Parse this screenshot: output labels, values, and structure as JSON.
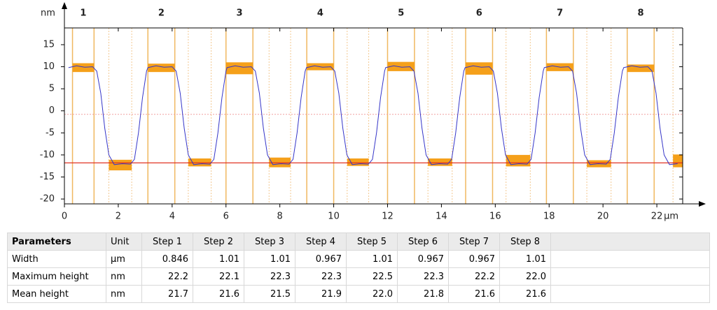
{
  "chart_data": {
    "type": "line",
    "y_unit": "nm",
    "x_unit": "µm",
    "xlim": [
      0,
      22.96
    ],
    "ylim": [
      -21.1,
      18.8
    ],
    "xticks": [
      0,
      2,
      4,
      6,
      8,
      10,
      12,
      14,
      16,
      18,
      20,
      22
    ],
    "yticks": [
      15,
      10,
      5,
      0,
      -5,
      -10,
      -15,
      -20
    ],
    "step_labels": [
      "1",
      "2",
      "3",
      "4",
      "5",
      "6",
      "7",
      "8"
    ],
    "reference_line": -11.8,
    "zero_line": -0.8,
    "series": [
      {
        "color": "#3535c8",
        "x": [
          0.15,
          0.45,
          0.75,
          1.05,
          1.2,
          1.35,
          1.5,
          1.65,
          1.85,
          2.15,
          2.45,
          2.6,
          2.75,
          2.9,
          3.05,
          3.1,
          3.4,
          3.7,
          4.0,
          4.15,
          4.3,
          4.45,
          4.6,
          4.8,
          5.1,
          5.4,
          5.55,
          5.7,
          5.85,
          6.0,
          6.04,
          6.34,
          6.64,
          6.94,
          7.09,
          7.24,
          7.39,
          7.54,
          7.74,
          8.04,
          8.34,
          8.49,
          8.64,
          8.79,
          8.94,
          8.99,
          9.29,
          9.59,
          9.89,
          10.04,
          10.19,
          10.34,
          10.49,
          10.69,
          10.99,
          11.29,
          11.44,
          11.59,
          11.74,
          11.89,
          11.93,
          12.23,
          12.53,
          12.83,
          12.98,
          13.13,
          13.28,
          13.43,
          13.63,
          13.93,
          14.23,
          14.38,
          14.53,
          14.68,
          14.83,
          14.88,
          15.18,
          15.48,
          15.78,
          15.93,
          16.08,
          16.23,
          16.38,
          16.58,
          16.88,
          17.18,
          17.33,
          17.48,
          17.63,
          17.78,
          17.82,
          18.12,
          18.42,
          18.72,
          18.87,
          19.02,
          19.17,
          19.32,
          19.52,
          19.82,
          20.12,
          20.27,
          20.42,
          20.57,
          20.72,
          20.77,
          21.07,
          21.37,
          21.67,
          21.82,
          21.97,
          22.12,
          22.27,
          22.47,
          22.77
        ],
        "values": [
          9.8,
          10.2,
          9.9,
          10.0,
          9.0,
          4,
          -4,
          -10,
          -12.2,
          -12,
          -12.1,
          -11,
          -5,
          3,
          9,
          9.8,
          10.2,
          9.9,
          10.0,
          9.0,
          4,
          -4,
          -10,
          -12.2,
          -12,
          -12.1,
          -11,
          -5,
          3,
          9,
          9.8,
          10.2,
          9.9,
          10.0,
          9.0,
          4,
          -4,
          -10,
          -12.2,
          -12,
          -12.1,
          -11,
          -5,
          3,
          9,
          9.8,
          10.2,
          9.9,
          10.0,
          9.0,
          4,
          -4,
          -10,
          -12.2,
          -12,
          -12.1,
          -11,
          -5,
          3,
          9,
          9.8,
          10.2,
          9.9,
          10.0,
          9.0,
          4,
          -4,
          -10,
          -12.2,
          -12,
          -12.1,
          -11,
          -5,
          3,
          9,
          9.8,
          10.2,
          9.9,
          10.0,
          9.0,
          4,
          -4,
          -10,
          -12.2,
          -12,
          -12.1,
          -11,
          -5,
          3,
          9,
          9.8,
          10.2,
          9.9,
          10.0,
          9.0,
          4,
          -4,
          -10,
          -12.2,
          -12,
          -12.1,
          -11,
          -5,
          3,
          9,
          9.8,
          10.2,
          9.9,
          10.0,
          9.0,
          4,
          -4,
          -10,
          -12.2,
          -12
        ]
      }
    ],
    "regions": {
      "color": "#f5a01a",
      "x0": [
        0.3,
        1.65,
        3.1,
        4.6,
        6.0,
        7.6,
        9.0,
        10.5,
        12.0,
        13.5,
        14.9,
        16.4,
        17.9,
        19.4,
        20.9,
        22.6
      ],
      "x1": [
        1.1,
        2.5,
        4.1,
        5.45,
        7.0,
        8.4,
        10.0,
        11.3,
        13.0,
        14.4,
        15.9,
        17.3,
        18.9,
        20.3,
        21.9,
        22.96
      ],
      "y0": [
        8.8,
        -13.5,
        8.8,
        -12.6,
        8.3,
        -12.8,
        9.2,
        -12.5,
        9.0,
        -12.5,
        8.2,
        -12.6,
        9.0,
        -12.8,
        8.8,
        -12.8
      ],
      "y1": [
        10.8,
        -11.1,
        10.7,
        -10.8,
        11.0,
        -10.6,
        10.8,
        -10.8,
        11.1,
        -10.8,
        11.0,
        -10.0,
        10.8,
        -11.2,
        10.5,
        -9.9
      ]
    }
  },
  "table": {
    "header": [
      "Parameters",
      "Unit",
      "Step 1",
      "Step 2",
      "Step 3",
      "Step 4",
      "Step 5",
      "Step 6",
      "Step 7",
      "Step 8"
    ],
    "rows": [
      [
        "Width",
        "µm",
        "0.846",
        "1.01",
        "1.01",
        "0.967",
        "1.01",
        "0.967",
        "0.967",
        "1.01"
      ],
      [
        "Maximum height",
        "nm",
        "22.2",
        "22.1",
        "22.3",
        "22.3",
        "22.5",
        "22.3",
        "22.2",
        "22.0"
      ],
      [
        "Mean height",
        "nm",
        "21.7",
        "21.6",
        "21.5",
        "21.9",
        "22.0",
        "21.8",
        "21.6",
        "21.6"
      ]
    ]
  }
}
